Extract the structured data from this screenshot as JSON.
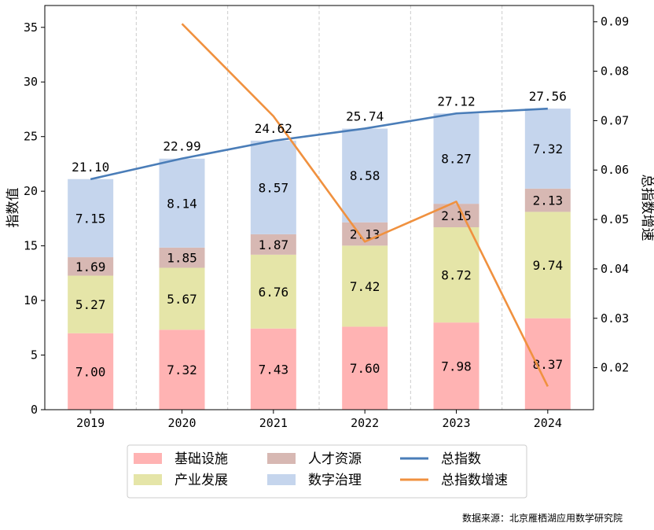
{
  "chart_data": {
    "type": "bar",
    "stacked": true,
    "categories": [
      "2019",
      "2020",
      "2021",
      "2022",
      "2023",
      "2024"
    ],
    "series": [
      {
        "name": "基础设施",
        "kind": "bar",
        "color": "#ffb3b3",
        "values": [
          7.0,
          7.32,
          7.43,
          7.6,
          7.98,
          8.37
        ],
        "labels": [
          "7.00",
          "7.32",
          "7.43",
          "7.60",
          "7.98",
          "8.37"
        ]
      },
      {
        "name": "产业发展",
        "kind": "bar",
        "color": "#e5e5a8",
        "values": [
          5.27,
          5.67,
          6.76,
          7.42,
          8.72,
          9.74
        ],
        "labels": [
          "5.27",
          "5.67",
          "6.76",
          "7.42",
          "8.72",
          "9.74"
        ]
      },
      {
        "name": "人才资源",
        "kind": "bar",
        "color": "#d7b8b3",
        "values": [
          1.69,
          1.85,
          1.87,
          2.13,
          2.15,
          2.13
        ],
        "labels": [
          "1.69",
          "1.85",
          "1.87",
          "2.13",
          "2.15",
          "2.13"
        ]
      },
      {
        "name": "数字治理",
        "kind": "bar",
        "color": "#c5d5ed",
        "values": [
          7.15,
          8.14,
          8.57,
          8.58,
          8.27,
          7.32
        ],
        "labels": [
          "7.15",
          "8.14",
          "8.57",
          "8.58",
          "8.27",
          "7.32"
        ]
      },
      {
        "name": "总指数",
        "kind": "line",
        "axis": "left",
        "color": "#4a7db8",
        "values": [
          21.1,
          22.99,
          24.62,
          25.74,
          27.12,
          27.56
        ],
        "labels": [
          "21.10",
          "22.99",
          "24.62",
          "25.74",
          "27.12",
          "27.56"
        ]
      },
      {
        "name": "总指数增速",
        "kind": "line",
        "axis": "right",
        "color": "#f0913f",
        "values": [
          null,
          0.0896,
          0.0709,
          0.0455,
          0.0536,
          0.0162
        ]
      }
    ],
    "ylabel": "指数值",
    "y2label": "总指数增速",
    "ylim": [
      0,
      37
    ],
    "y2lim": [
      0.0115,
      0.0933
    ],
    "yticks": [
      "0",
      "5",
      "10",
      "15",
      "20",
      "25",
      "30",
      "35"
    ],
    "y2ticks": [
      "0.02",
      "0.03",
      "0.04",
      "0.05",
      "0.06",
      "0.07",
      "0.08",
      "0.09"
    ],
    "grid": "vertical dashed",
    "legend_placement": "bottom-center",
    "source_note": "数据来源：北京雁栖湖应用数学研究院"
  }
}
